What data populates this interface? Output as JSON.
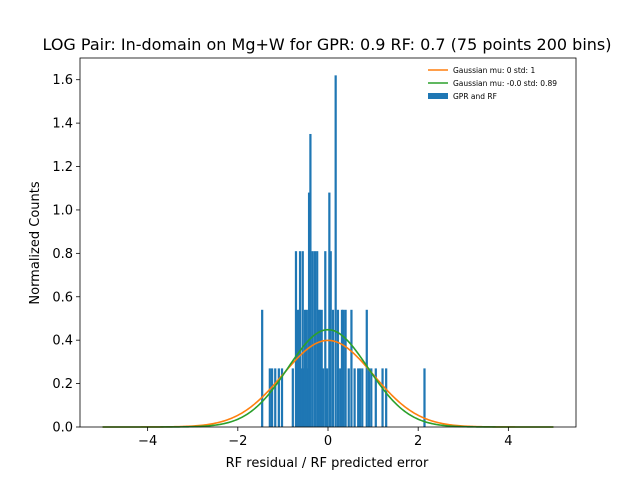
{
  "chart_data": {
    "type": "bar",
    "title": "LOG Pair: In-domain on Mg+W for GPR: 0.9 RF: 0.7 (75 points 200 bins)",
    "xlabel": "RF residual / RF predicted error",
    "ylabel": "Normalized Counts",
    "xlim": [
      -5.5,
      5.5
    ],
    "ylim": [
      0,
      1.7
    ],
    "xticks": [
      -4,
      -2,
      0,
      2,
      4
    ],
    "xtick_labels": [
      "−4",
      "−2",
      "0",
      "2",
      "4"
    ],
    "yticks": [
      0.0,
      0.2,
      0.4,
      0.6,
      0.8,
      1.0,
      1.2,
      1.4,
      1.6
    ],
    "ytick_labels": [
      "0.0",
      "0.2",
      "0.4",
      "0.6",
      "0.8",
      "1.0",
      "1.2",
      "1.4",
      "1.6"
    ],
    "legend_position": "top-right",
    "legend": [
      {
        "label": "Gaussian mu: 0 std: 1",
        "kind": "line",
        "color": "#ff7f0e"
      },
      {
        "label": "Gaussian mu: -0.0 std: 0.89",
        "kind": "line",
        "color": "#2ca02c"
      },
      {
        "label": "GPR and RF",
        "kind": "bar",
        "color": "#1f77b4"
      }
    ],
    "histogram": {
      "name": "GPR and RF",
      "color": "#1f77b4",
      "bin_width": 0.0495,
      "x": [
        -1.46,
        -1.29,
        -1.24,
        -1.17,
        -1.09,
        -1.02,
        -0.78,
        -0.71,
        -0.68,
        -0.64,
        -0.62,
        -0.59,
        -0.56,
        -0.54,
        -0.51,
        -0.47,
        -0.44,
        -0.42,
        -0.39,
        -0.34,
        -0.29,
        -0.24,
        -0.21,
        -0.18,
        -0.14,
        -0.11,
        -0.06,
        -0.02,
        0.03,
        0.06,
        0.11,
        0.17,
        0.22,
        0.27,
        0.31,
        0.34,
        0.39,
        0.46,
        0.52,
        0.59,
        0.67,
        0.71,
        0.76,
        0.86,
        0.91,
        0.96,
        1.06,
        1.21,
        1.29,
        2.14
      ],
      "y": [
        0.54,
        0.27,
        0.27,
        0.27,
        0.27,
        0.27,
        0.27,
        0.81,
        0.54,
        0.54,
        0.81,
        0.27,
        0.81,
        0.27,
        0.54,
        0.54,
        0.27,
        1.08,
        1.35,
        0.81,
        0.81,
        0.81,
        0.54,
        0.54,
        0.54,
        0.27,
        0.81,
        0.27,
        1.08,
        0.81,
        0.54,
        1.62,
        0.54,
        0.27,
        0.54,
        0.54,
        0.54,
        0.27,
        0.54,
        0.27,
        0.27,
        0.27,
        0.27,
        0.54,
        0.27,
        0.27,
        0.27,
        0.27,
        0.27,
        0.27
      ]
    },
    "curves": [
      {
        "name": "Gaussian mu: 0 std: 1",
        "color": "#ff7f0e",
        "mu": 0,
        "std": 1,
        "x_range": [
          -5,
          5
        ]
      },
      {
        "name": "Gaussian mu: -0.0 std: 0.89",
        "color": "#2ca02c",
        "mu": 0,
        "std": 0.89,
        "x_range": [
          -5,
          5
        ]
      }
    ]
  }
}
